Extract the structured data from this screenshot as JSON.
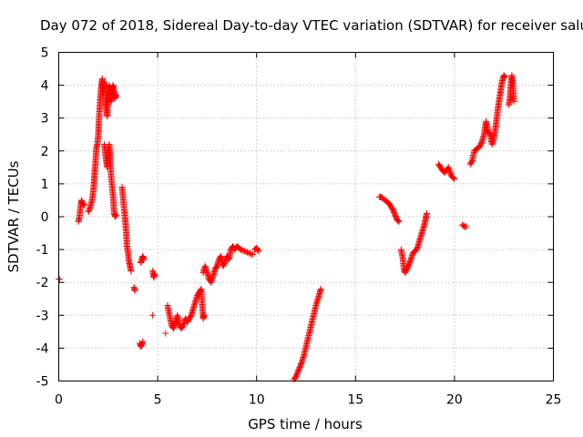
{
  "chart_data": {
    "type": "scatter",
    "title": "Day 072 of 2018, Sidereal Day-to-day VTEC variation (SDTVAR) for receiver salu",
    "xlabel": "GPS time / hours",
    "ylabel": "SDTVAR / TECUs",
    "xlim": [
      0,
      25
    ],
    "ylim": [
      -5,
      5
    ],
    "xticks": [
      0,
      5,
      10,
      15,
      20,
      25
    ],
    "yticks": [
      -5,
      -4,
      -3,
      -2,
      -1,
      0,
      1,
      2,
      3,
      4,
      5
    ],
    "grid": true,
    "marker": "+",
    "color": "#ff0000",
    "series": [
      {
        "name": "SDTVAR",
        "segments": [
          {
            "points": [
              [
                0.0,
                -1.9
              ],
              [
                0.05,
                -1.9
              ]
            ]
          },
          {
            "points": [
              [
                1.0,
                -0.15
              ],
              [
                1.05,
                0.0
              ],
              [
                1.1,
                0.3
              ],
              [
                1.15,
                0.5
              ],
              [
                1.2,
                0.4
              ],
              [
                1.3,
                0.35
              ]
            ]
          },
          {
            "points": [
              [
                1.5,
                0.15
              ],
              [
                1.6,
                0.3
              ],
              [
                1.7,
                0.55
              ],
              [
                1.75,
                0.8
              ],
              [
                1.8,
                1.2
              ],
              [
                1.85,
                1.6
              ],
              [
                1.9,
                2.1
              ],
              [
                1.95,
                2.2
              ],
              [
                2.0,
                2.5
              ],
              [
                2.03,
                2.9
              ],
              [
                2.06,
                3.2
              ],
              [
                2.1,
                3.6
              ],
              [
                2.15,
                4.0
              ],
              [
                2.2,
                4.2
              ],
              [
                2.25,
                3.9
              ],
              [
                2.3,
                4.1
              ],
              [
                2.35,
                3.7
              ],
              [
                2.4,
                3.3
              ],
              [
                2.45,
                3.05
              ],
              [
                2.5,
                3.9
              ],
              [
                2.55,
                4.0
              ],
              [
                2.6,
                3.7
              ],
              [
                2.65,
                3.5
              ],
              [
                2.7,
                3.9
              ],
              [
                2.75,
                4.0
              ],
              [
                2.8,
                3.8
              ],
              [
                2.85,
                3.6
              ],
              [
                2.9,
                3.7
              ]
            ]
          },
          {
            "points": [
              [
                2.3,
                2.2
              ],
              [
                2.35,
                1.95
              ],
              [
                2.4,
                1.7
              ],
              [
                2.45,
                1.5
              ],
              [
                2.5,
                2.0
              ],
              [
                2.55,
                2.2
              ],
              [
                2.6,
                1.8
              ],
              [
                2.65,
                1.2
              ],
              [
                2.7,
                0.9
              ],
              [
                2.75,
                0.6
              ],
              [
                2.8,
                0.1
              ],
              [
                2.85,
                0.0
              ],
              [
                2.9,
                0.05
              ]
            ]
          },
          {
            "points": [
              [
                3.2,
                0.9
              ],
              [
                3.25,
                0.6
              ],
              [
                3.3,
                0.25
              ],
              [
                3.35,
                0.0
              ],
              [
                3.4,
                -0.4
              ],
              [
                3.45,
                -0.9
              ],
              [
                3.5,
                -1.1
              ],
              [
                3.55,
                -1.35
              ],
              [
                3.6,
                -1.5
              ],
              [
                3.65,
                -1.65
              ]
            ]
          },
          {
            "points": [
              [
                3.8,
                -2.15
              ],
              [
                3.85,
                -2.25
              ]
            ]
          },
          {
            "points": [
              [
                4.1,
                -3.85
              ],
              [
                4.15,
                -3.95
              ],
              [
                4.2,
                -3.9
              ],
              [
                4.25,
                -3.8
              ]
            ]
          },
          {
            "points": [
              [
                4.15,
                -1.4
              ],
              [
                4.2,
                -1.3
              ],
              [
                4.25,
                -1.2
              ],
              [
                4.3,
                -1.3
              ]
            ]
          },
          {
            "points": [
              [
                4.75,
                -1.65
              ],
              [
                4.8,
                -1.85
              ],
              [
                4.85,
                -1.75
              ]
            ]
          },
          {
            "points": [
              [
                4.75,
                -3.0
              ]
            ]
          },
          {
            "points": [
              [
                5.4,
                -3.55
              ]
            ]
          },
          {
            "points": [
              [
                5.5,
                -2.7
              ],
              [
                5.6,
                -3.0
              ],
              [
                5.7,
                -3.3
              ],
              [
                5.8,
                -3.4
              ],
              [
                5.9,
                -3.2
              ],
              [
                6.0,
                -3.0
              ],
              [
                6.1,
                -3.3
              ],
              [
                6.2,
                -3.4
              ],
              [
                6.3,
                -3.3
              ],
              [
                6.4,
                -3.1
              ],
              [
                6.5,
                -3.2
              ],
              [
                6.6,
                -3.1
              ],
              [
                6.7,
                -3.0
              ],
              [
                6.8,
                -2.8
              ],
              [
                6.9,
                -2.6
              ],
              [
                7.0,
                -2.4
              ],
              [
                7.1,
                -2.3
              ],
              [
                7.2,
                -2.2
              ],
              [
                7.3,
                -3.1
              ],
              [
                7.35,
                -3.0
              ]
            ]
          },
          {
            "points": [
              [
                7.3,
                -1.7
              ],
              [
                7.4,
                -1.5
              ],
              [
                7.5,
                -1.7
              ],
              [
                7.6,
                -1.9
              ],
              [
                7.7,
                -2.0
              ],
              [
                7.8,
                -1.8
              ],
              [
                7.9,
                -1.6
              ],
              [
                8.0,
                -1.5
              ],
              [
                8.1,
                -1.3
              ],
              [
                8.2,
                -1.2
              ],
              [
                8.3,
                -1.5
              ],
              [
                8.4,
                -1.4
              ],
              [
                8.5,
                -1.2
              ],
              [
                8.6,
                -1.3
              ],
              [
                8.7,
                -1.0
              ],
              [
                8.8,
                -0.9
              ],
              [
                8.9,
                -1.0
              ],
              [
                9.0,
                -0.9
              ],
              [
                9.2,
                -1.0
              ],
              [
                9.4,
                -1.05
              ],
              [
                9.6,
                -1.1
              ],
              [
                9.8,
                -1.15
              ]
            ]
          },
          {
            "points": [
              [
                9.9,
                -1.0
              ],
              [
                10.0,
                -0.95
              ],
              [
                10.1,
                -1.05
              ]
            ]
          },
          {
            "points": [
              [
                11.9,
                -4.95
              ],
              [
                12.0,
                -4.85
              ],
              [
                12.1,
                -4.7
              ],
              [
                12.2,
                -4.55
              ],
              [
                12.3,
                -4.4
              ],
              [
                12.4,
                -4.2
              ],
              [
                12.5,
                -3.95
              ],
              [
                12.6,
                -3.7
              ],
              [
                12.7,
                -3.45
              ],
              [
                12.8,
                -3.2
              ],
              [
                12.9,
                -2.95
              ],
              [
                13.0,
                -2.7
              ],
              [
                13.1,
                -2.5
              ],
              [
                13.2,
                -2.3
              ],
              [
                13.25,
                -2.2
              ]
            ]
          },
          {
            "points": [
              [
                16.2,
                0.6
              ],
              [
                16.3,
                0.6
              ],
              [
                16.4,
                0.55
              ],
              [
                16.5,
                0.5
              ],
              [
                16.6,
                0.45
              ],
              [
                16.7,
                0.4
              ],
              [
                16.8,
                0.3
              ],
              [
                16.9,
                0.2
              ],
              [
                17.0,
                0.05
              ],
              [
                17.1,
                -0.1
              ],
              [
                17.2,
                -0.15
              ]
            ]
          },
          {
            "points": [
              [
                17.3,
                -1.0
              ],
              [
                17.4,
                -1.3
              ],
              [
                17.45,
                -1.6
              ],
              [
                17.5,
                -1.7
              ],
              [
                17.6,
                -1.6
              ],
              [
                17.7,
                -1.45
              ],
              [
                17.8,
                -1.3
              ],
              [
                17.9,
                -1.1
              ],
              [
                18.0,
                -1.05
              ],
              [
                18.1,
                -1.0
              ],
              [
                18.2,
                -0.8
              ],
              [
                18.3,
                -0.6
              ],
              [
                18.4,
                -0.4
              ],
              [
                18.5,
                -0.2
              ],
              [
                18.55,
                -0.05
              ],
              [
                18.6,
                0.1
              ]
            ]
          },
          {
            "points": [
              [
                19.2,
                1.6
              ],
              [
                19.3,
                1.5
              ],
              [
                19.4,
                1.4
              ],
              [
                19.5,
                1.35
              ],
              [
                19.6,
                1.4
              ],
              [
                19.7,
                1.5
              ],
              [
                19.8,
                1.3
              ],
              [
                19.9,
                1.2
              ],
              [
                20.0,
                1.15
              ]
            ]
          },
          {
            "points": [
              [
                20.4,
                -0.25
              ],
              [
                20.5,
                -0.3
              ],
              [
                20.6,
                -0.3
              ]
            ]
          },
          {
            "points": [
              [
                20.8,
                1.6
              ],
              [
                20.9,
                1.7
              ],
              [
                21.0,
                2.0
              ],
              [
                21.1,
                2.05
              ],
              [
                21.2,
                2.1
              ],
              [
                21.3,
                2.15
              ],
              [
                21.4,
                2.3
              ],
              [
                21.5,
                2.5
              ],
              [
                21.6,
                2.9
              ],
              [
                21.7,
                2.6
              ],
              [
                21.8,
                2.5
              ],
              [
                21.9,
                2.2
              ],
              [
                22.0,
                2.4
              ],
              [
                22.1,
                2.8
              ],
              [
                22.2,
                3.3
              ],
              [
                22.3,
                3.7
              ],
              [
                22.4,
                4.1
              ],
              [
                22.5,
                4.3
              ],
              [
                22.55,
                4.25
              ]
            ]
          },
          {
            "points": [
              [
                22.75,
                3.4
              ],
              [
                22.8,
                3.6
              ],
              [
                22.85,
                4.0
              ],
              [
                22.9,
                4.3
              ],
              [
                22.95,
                4.1
              ],
              [
                23.0,
                3.5
              ]
            ]
          }
        ]
      }
    ]
  }
}
